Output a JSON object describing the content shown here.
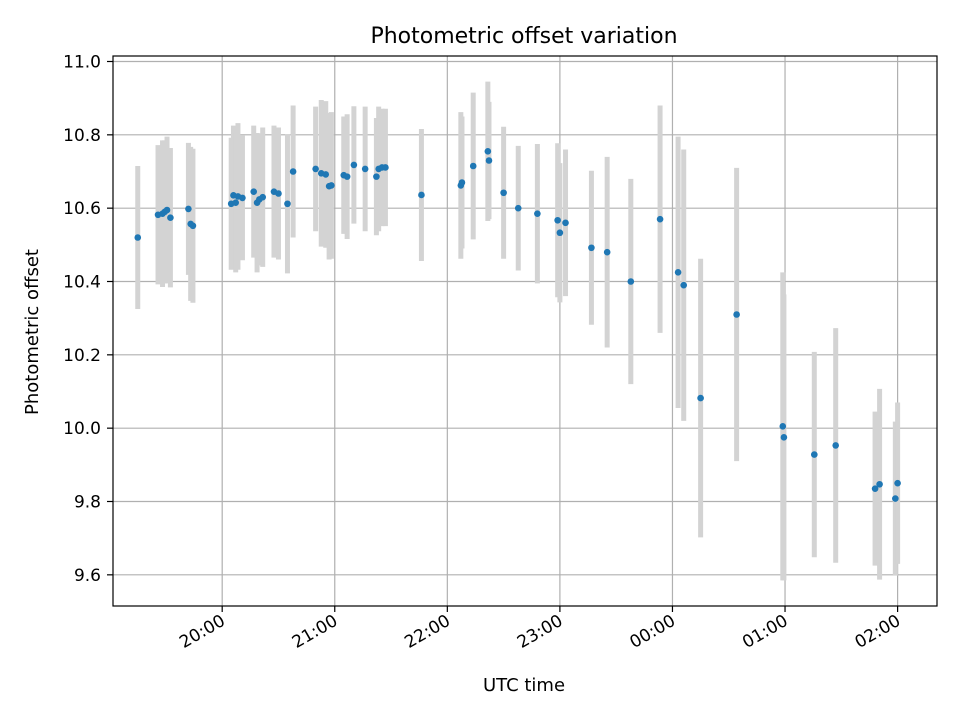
{
  "chart_data": {
    "type": "scatter",
    "title": "Photometric offset variation",
    "xlabel": "UTC time",
    "ylabel": "Photometric offset",
    "grid": true,
    "xlim": [
      19.03,
      26.35
    ],
    "ylim": [
      9.515,
      11.015
    ],
    "yticks": [
      9.6,
      9.8,
      10.0,
      10.2,
      10.4,
      10.6,
      10.8,
      11.0
    ],
    "ytick_labels": [
      "9.6",
      "9.8",
      "10.0",
      "10.2",
      "10.4",
      "10.6",
      "10.8",
      "11.0"
    ],
    "xticks": [
      20,
      21,
      22,
      23,
      24,
      25,
      26
    ],
    "xtick_labels": [
      "20:00",
      "21:00",
      "22:00",
      "23:00",
      "00:00",
      "01:00",
      "02:00"
    ],
    "colors": {
      "point": "#1f77b4",
      "errorbar": "#d3d3d3",
      "grid": "#b0b0b0"
    },
    "series": [
      {
        "name": "offset",
        "x": [
          19.25,
          19.43,
          19.47,
          19.49,
          19.51,
          19.54,
          19.7,
          19.72,
          19.74,
          20.08,
          20.1,
          20.12,
          20.14,
          20.18,
          20.28,
          20.31,
          20.33,
          20.36,
          20.46,
          20.5,
          20.58,
          20.63,
          20.83,
          20.88,
          20.92,
          20.95,
          20.97,
          21.08,
          21.11,
          21.17,
          21.27,
          21.37,
          21.39,
          21.42,
          21.45,
          21.77,
          22.12,
          22.13,
          22.23,
          22.36,
          22.37,
          22.5,
          22.63,
          22.8,
          22.98,
          23.0,
          23.05,
          23.28,
          23.42,
          23.63,
          23.89,
          24.05,
          24.1,
          24.25,
          24.57,
          24.98,
          24.99,
          25.26,
          25.45,
          25.8,
          25.84,
          25.98,
          26.0
        ],
        "y": [
          10.52,
          10.582,
          10.585,
          10.59,
          10.595,
          10.574,
          10.598,
          10.557,
          10.552,
          10.612,
          10.635,
          10.615,
          10.632,
          10.628,
          10.645,
          10.615,
          10.624,
          10.63,
          10.645,
          10.64,
          10.612,
          10.7,
          10.707,
          10.695,
          10.692,
          10.66,
          10.662,
          10.69,
          10.686,
          10.718,
          10.707,
          10.686,
          10.707,
          10.711,
          10.711,
          10.636,
          10.662,
          10.67,
          10.715,
          10.755,
          10.73,
          10.642,
          10.6,
          10.585,
          10.567,
          10.533,
          10.56,
          10.492,
          10.48,
          10.4,
          10.57,
          10.425,
          10.39,
          10.082,
          10.31,
          10.005,
          9.975,
          9.928,
          9.953,
          9.835,
          9.847,
          9.808,
          9.85
        ],
        "yerr": [
          0.195,
          0.19,
          0.2,
          0.195,
          0.2,
          0.19,
          0.18,
          0.21,
          0.21,
          0.18,
          0.19,
          0.19,
          0.2,
          0.17,
          0.18,
          0.19,
          0.18,
          0.19,
          0.18,
          0.18,
          0.19,
          0.18,
          0.17,
          0.2,
          0.2,
          0.2,
          0.2,
          0.16,
          0.17,
          0.16,
          0.17,
          0.16,
          0.17,
          0.16,
          0.16,
          0.18,
          0.2,
          0.18,
          0.2,
          0.19,
          0.16,
          0.18,
          0.17,
          0.19,
          0.21,
          0.19,
          0.2,
          0.21,
          0.26,
          0.28,
          0.31,
          0.37,
          0.37,
          0.38,
          0.4,
          0.42,
          0.39,
          0.28,
          0.32,
          0.21,
          0.26,
          0.21,
          0.22
        ]
      }
    ]
  }
}
